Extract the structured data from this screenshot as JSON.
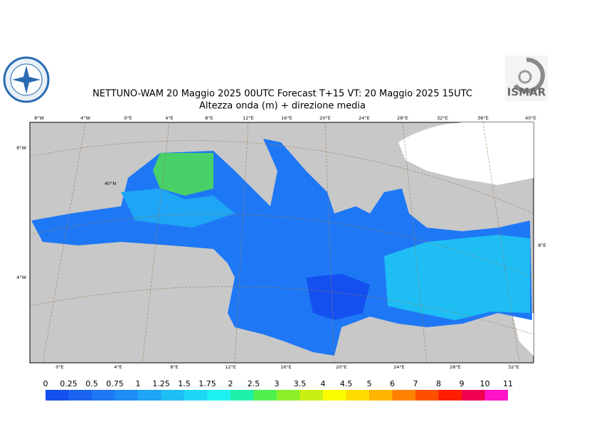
{
  "header": {
    "title": "NETTUNO-WAM 20   Maggio  2025 00UTC Forecast T+15 VT: 20   Maggio  2025 15UTC",
    "subtitle": "Altezza onda (m) + direzione media",
    "logo_right": "ISMAR"
  },
  "map": {
    "top_labels": [
      "8°W",
      "4°W",
      "0°E",
      "4°E",
      "8°E",
      "12°E",
      "16°E",
      "20°E",
      "24°E",
      "28°E",
      "32°E",
      "36°E",
      "40°E"
    ],
    "bottom_labels": [
      "0°E",
      "4°E",
      "8°E",
      "12°E",
      "16°E",
      "20°E",
      "24°E",
      "28°E",
      "32°E"
    ],
    "left_labels": [
      "8°W",
      "4°W"
    ],
    "right_labels": [
      "8°E"
    ],
    "inner_labels": [
      "40°N"
    ]
  },
  "legend": {
    "levels": [
      0,
      0.25,
      0.5,
      0.75,
      1,
      1.25,
      1.5,
      1.75,
      2,
      2.5,
      3,
      3.5,
      4,
      4.5,
      5,
      6,
      7,
      8,
      9,
      10,
      11
    ],
    "colors": [
      "#1450f0",
      "#1a64f0",
      "#1e78f5",
      "#1e8cf5",
      "#1ea5f5",
      "#1ebef5",
      "#1ed7f5",
      "#1ef0f0",
      "#1ef0aa",
      "#50f050",
      "#8cf028",
      "#c8f014",
      "#fafa00",
      "#ffdc00",
      "#ffb400",
      "#ff8200",
      "#ff5000",
      "#ff1e00",
      "#f00050",
      "#ff14c8"
    ]
  }
}
